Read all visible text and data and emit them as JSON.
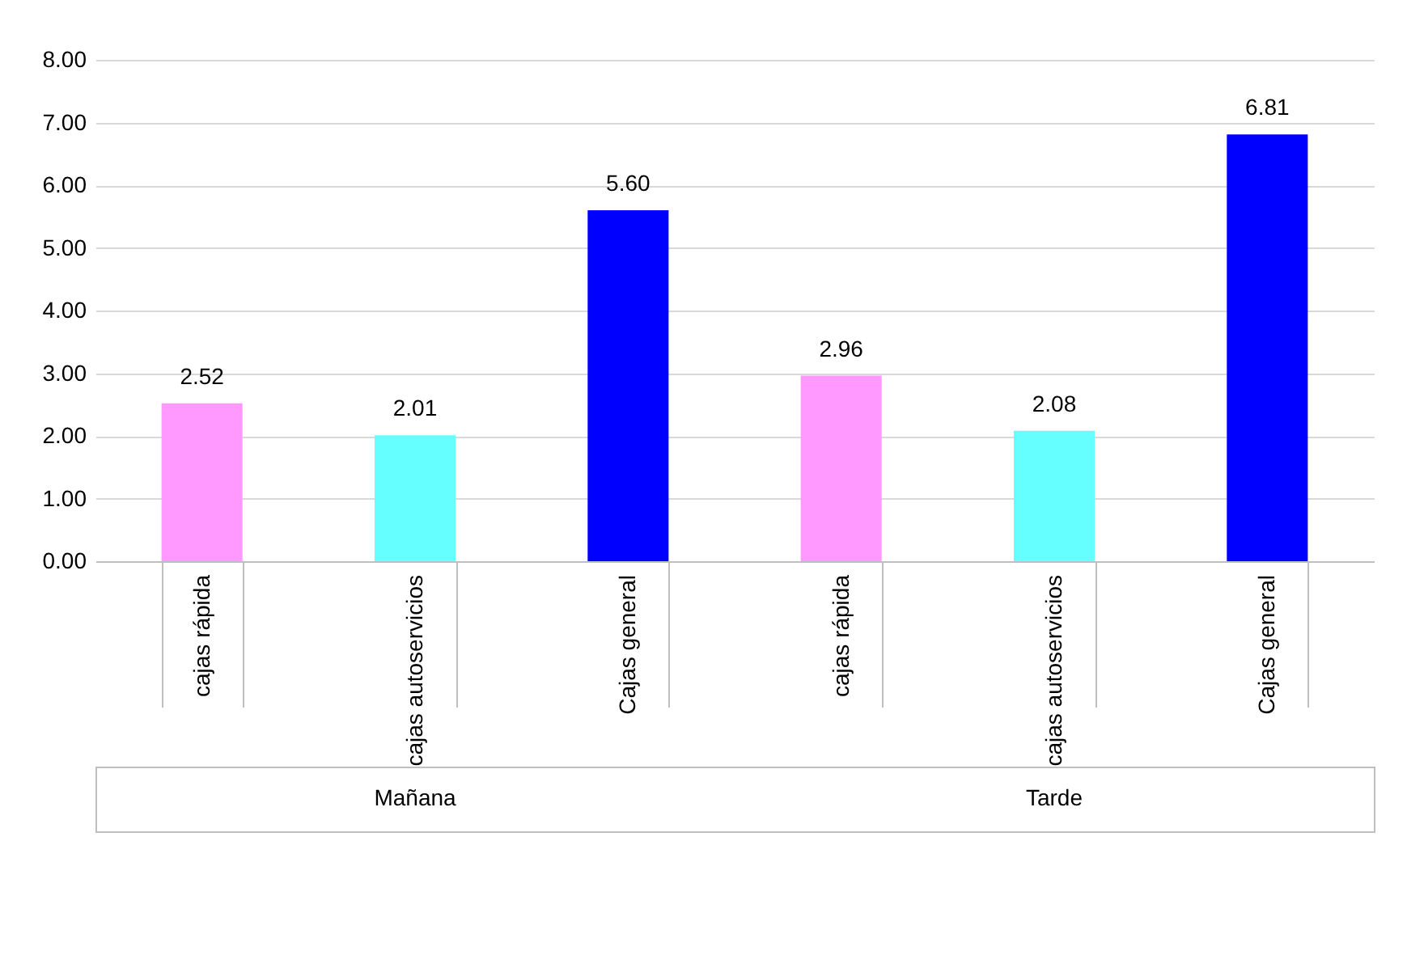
{
  "chart_data": {
    "type": "bar",
    "categories": [
      "cajas rápida",
      "cajas autoservicios",
      "Cajas general",
      "cajas rápida",
      "cajas autoservicios",
      "Cajas general"
    ],
    "values": [
      2.52,
      2.01,
      5.6,
      2.96,
      2.08,
      6.81
    ],
    "colors": [
      "#ff99ff",
      "#66ffff",
      "#0000ff",
      "#ff99ff",
      "#66ffff",
      "#0000ff"
    ],
    "value_labels": [
      "2.52",
      "2.01",
      "5.60",
      "2.96",
      "2.08",
      "6.81"
    ],
    "ylim": [
      0,
      8
    ],
    "yticks": [
      {
        "value": 0,
        "label": "0.00"
      },
      {
        "value": 1,
        "label": "1.00"
      },
      {
        "value": 2,
        "label": "2.00"
      },
      {
        "value": 3,
        "label": "3.00"
      },
      {
        "value": 4,
        "label": "4.00"
      },
      {
        "value": 5,
        "label": "5.00"
      },
      {
        "value": 6,
        "label": "6.00"
      },
      {
        "value": 7,
        "label": "7.00"
      },
      {
        "value": 8,
        "label": "8.00"
      }
    ],
    "grid": "y",
    "annotations": [
      "Mañana",
      "Tarde"
    ]
  }
}
